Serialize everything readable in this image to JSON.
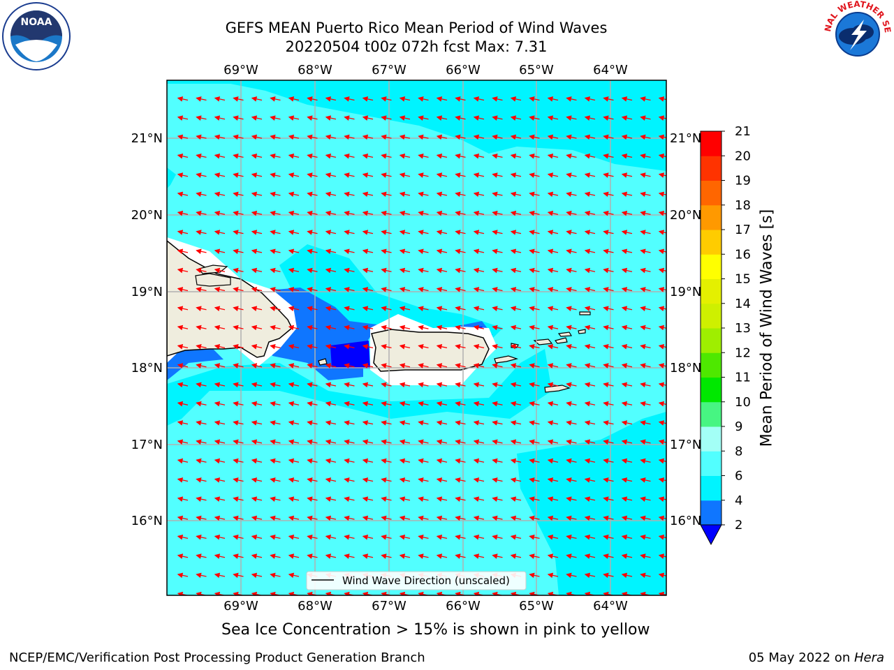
{
  "header": {
    "title_line1": "GEFS MEAN Puerto Rico Mean Period of Wind Waves",
    "title_line2": "20220504 t00z 072h fcst   Max: 7.31"
  },
  "logos": {
    "left": "noaa-logo",
    "right": "nws-logo",
    "right_text": "NATIONAL WEATHER SERVICE"
  },
  "map": {
    "lon_labels": [
      "69°W",
      "68°W",
      "67°W",
      "66°W",
      "65°W",
      "64°W"
    ],
    "lat_labels": [
      "21°N",
      "20°N",
      "19°N",
      "18°N",
      "17°N",
      "16°N"
    ],
    "land_color": "#efedde",
    "coast_color": "#000000",
    "arrow_color": "#ff0000",
    "grid": true,
    "legend_label": "Wind Wave Direction (unscaled)",
    "legend_position": "bottom-center"
  },
  "colorbar": {
    "label": "Mean Period of Wind Waves [s]",
    "ticks": [
      "2",
      "4",
      "6",
      "8",
      "9",
      "10",
      "11",
      "12",
      "13",
      "14",
      "15",
      "16",
      "17",
      "18",
      "19",
      "20",
      "21"
    ],
    "colors": [
      "#0000ff",
      "#0f76ff",
      "#00f4ff",
      "#52ffff",
      "#a3fff6",
      "#47f582",
      "#00e800",
      "#4ee800",
      "#9fee00",
      "#cef000",
      "#e4f000",
      "#ffff00",
      "#ffcc00",
      "#ff9900",
      "#ff6600",
      "#ff3300",
      "#ff0000"
    ],
    "extend_below_color": "#0000ff"
  },
  "notes": {
    "sea_ice": "Sea Ice Concentration > 15% is shown in pink to yellow"
  },
  "footer": {
    "left": "NCEP/EMC/Verification Post Processing Product Generation Branch",
    "date": "05 May 2022 on ",
    "host": "Hera"
  }
}
